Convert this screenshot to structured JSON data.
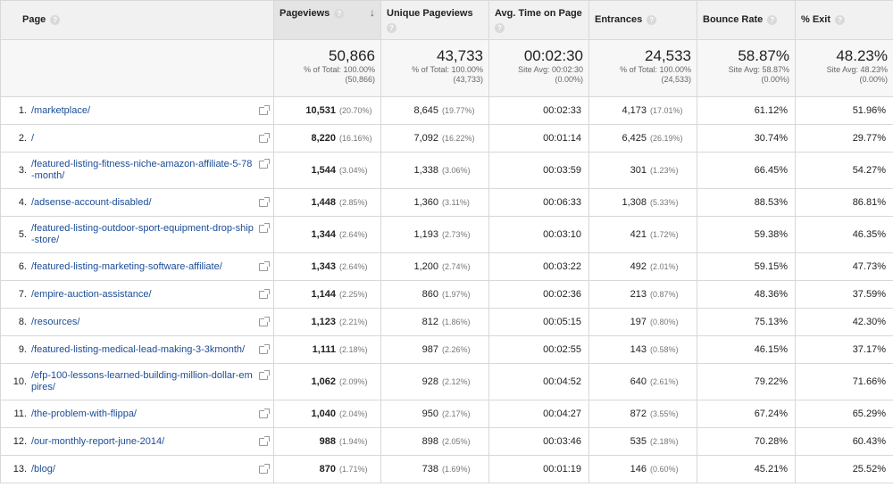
{
  "headers": {
    "page": "Page",
    "pageviews": "Pageviews",
    "unique_pageviews": "Unique Pageviews",
    "avg_time": "Avg. Time on Page",
    "entrances": "Entrances",
    "bounce_rate": "Bounce Rate",
    "exit": "% Exit",
    "help_glyph": "?",
    "sort_glyph": "↓"
  },
  "summary": {
    "pageviews": {
      "value": "50,866",
      "line1": "% of Total: 100.00%",
      "line2": "(50,866)"
    },
    "unique_pageviews": {
      "value": "43,733",
      "line1": "% of Total: 100.00%",
      "line2": "(43,733)"
    },
    "avg_time": {
      "value": "00:02:30",
      "line1": "Site Avg: 00:02:30",
      "line2": "(0.00%)"
    },
    "entrances": {
      "value": "24,533",
      "line1": "% of Total: 100.00%",
      "line2": "(24,533)"
    },
    "bounce_rate": {
      "value": "58.87%",
      "line1": "Site Avg: 58.87%",
      "line2": "(0.00%)"
    },
    "exit": {
      "value": "48.23%",
      "line1": "Site Avg: 48.23%",
      "line2": "(0.00%)"
    }
  },
  "rows": [
    {
      "idx": "1.",
      "page": "/marketplace/",
      "pv": "10,531",
      "pv_pct": "(20.70%)",
      "upv": "8,645",
      "upv_pct": "(19.77%)",
      "avg": "00:02:33",
      "ent": "4,173",
      "ent_pct": "(17.01%)",
      "br": "61.12%",
      "ex": "51.96%"
    },
    {
      "idx": "2.",
      "page": "/",
      "pv": "8,220",
      "pv_pct": "(16.16%)",
      "upv": "7,092",
      "upv_pct": "(16.22%)",
      "avg": "00:01:14",
      "ent": "6,425",
      "ent_pct": "(26.19%)",
      "br": "30.74%",
      "ex": "29.77%"
    },
    {
      "idx": "3.",
      "page": "/featured-listing-fitness-niche-amazon-affiliate-5-78-month/",
      "pv": "1,544",
      "pv_pct": "(3.04%)",
      "upv": "1,338",
      "upv_pct": "(3.06%)",
      "avg": "00:03:59",
      "ent": "301",
      "ent_pct": "(1.23%)",
      "br": "66.45%",
      "ex": "54.27%"
    },
    {
      "idx": "4.",
      "page": "/adsense-account-disabled/",
      "pv": "1,448",
      "pv_pct": "(2.85%)",
      "upv": "1,360",
      "upv_pct": "(3.11%)",
      "avg": "00:06:33",
      "ent": "1,308",
      "ent_pct": "(5.33%)",
      "br": "88.53%",
      "ex": "86.81%"
    },
    {
      "idx": "5.",
      "page": "/featured-listing-outdoor-sport-equipment-drop-ship-store/",
      "pv": "1,344",
      "pv_pct": "(2.64%)",
      "upv": "1,193",
      "upv_pct": "(2.73%)",
      "avg": "00:03:10",
      "ent": "421",
      "ent_pct": "(1.72%)",
      "br": "59.38%",
      "ex": "46.35%"
    },
    {
      "idx": "6.",
      "page": "/featured-listing-marketing-software-affiliate/",
      "pv": "1,343",
      "pv_pct": "(2.64%)",
      "upv": "1,200",
      "upv_pct": "(2.74%)",
      "avg": "00:03:22",
      "ent": "492",
      "ent_pct": "(2.01%)",
      "br": "59.15%",
      "ex": "47.73%"
    },
    {
      "idx": "7.",
      "page": "/empire-auction-assistance/",
      "pv": "1,144",
      "pv_pct": "(2.25%)",
      "upv": "860",
      "upv_pct": "(1.97%)",
      "avg": "00:02:36",
      "ent": "213",
      "ent_pct": "(0.87%)",
      "br": "48.36%",
      "ex": "37.59%"
    },
    {
      "idx": "8.",
      "page": "/resources/",
      "pv": "1,123",
      "pv_pct": "(2.21%)",
      "upv": "812",
      "upv_pct": "(1.86%)",
      "avg": "00:05:15",
      "ent": "197",
      "ent_pct": "(0.80%)",
      "br": "75.13%",
      "ex": "42.30%"
    },
    {
      "idx": "9.",
      "page": "/featured-listing-medical-lead-making-3-3kmonth/",
      "pv": "1,111",
      "pv_pct": "(2.18%)",
      "upv": "987",
      "upv_pct": "(2.26%)",
      "avg": "00:02:55",
      "ent": "143",
      "ent_pct": "(0.58%)",
      "br": "46.15%",
      "ex": "37.17%"
    },
    {
      "idx": "10.",
      "page": "/efp-100-lessons-learned-building-million-dollar-empires/",
      "pv": "1,062",
      "pv_pct": "(2.09%)",
      "upv": "928",
      "upv_pct": "(2.12%)",
      "avg": "00:04:52",
      "ent": "640",
      "ent_pct": "(2.61%)",
      "br": "79.22%",
      "ex": "71.66%"
    },
    {
      "idx": "11.",
      "page": "/the-problem-with-flippa/",
      "pv": "1,040",
      "pv_pct": "(2.04%)",
      "upv": "950",
      "upv_pct": "(2.17%)",
      "avg": "00:04:27",
      "ent": "872",
      "ent_pct": "(3.55%)",
      "br": "67.24%",
      "ex": "65.29%"
    },
    {
      "idx": "12.",
      "page": "/our-monthly-report-june-2014/",
      "pv": "988",
      "pv_pct": "(1.94%)",
      "upv": "898",
      "upv_pct": "(2.05%)",
      "avg": "00:03:46",
      "ent": "535",
      "ent_pct": "(2.18%)",
      "br": "70.28%",
      "ex": "60.43%"
    },
    {
      "idx": "13.",
      "page": "/blog/",
      "pv": "870",
      "pv_pct": "(1.71%)",
      "upv": "738",
      "upv_pct": "(1.69%)",
      "avg": "00:01:19",
      "ent": "146",
      "ent_pct": "(0.60%)",
      "br": "45.21%",
      "ex": "25.52%"
    }
  ]
}
